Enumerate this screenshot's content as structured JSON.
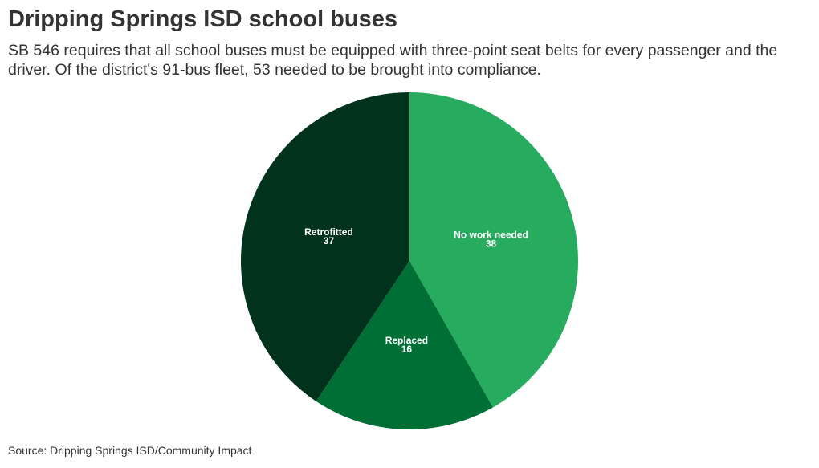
{
  "chart_data": {
    "type": "pie",
    "title": "Dripping Springs ISD school buses",
    "subtitle": "SB 546 requires that all school buses must be equipped with three-point seat belts for every passenger and the driver. Of the district's 91-bus fleet, 53 needed to be brought into compliance.",
    "source": "Source: Dripping Springs ISD/Community Impact",
    "categories": [
      "No work needed",
      "Replaced",
      "Retrofitted"
    ],
    "values": [
      38,
      16,
      37
    ],
    "colors": [
      "#27ab5e",
      "#006f36",
      "#00321c"
    ]
  }
}
